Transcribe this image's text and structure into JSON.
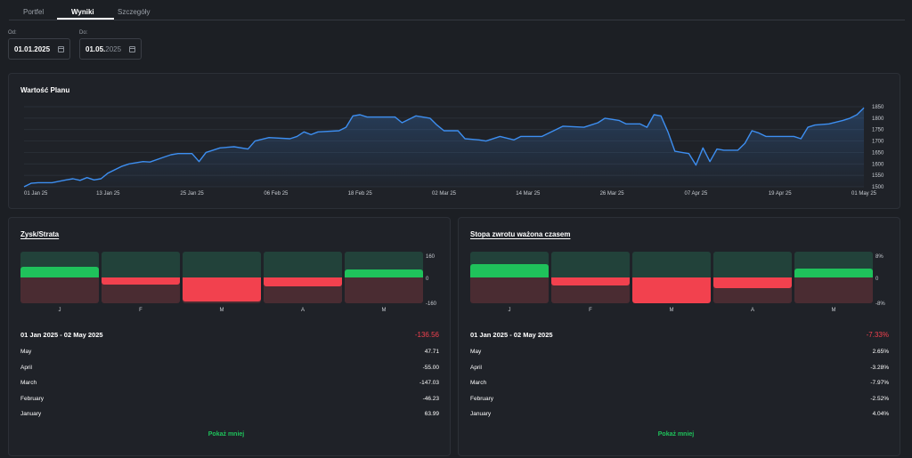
{
  "tabs": [
    {
      "label": "Portfel"
    },
    {
      "label": "Wyniki"
    },
    {
      "label": "Szczegóły"
    }
  ],
  "filters": {
    "from": {
      "label": "Od:",
      "value": "01.01.2025"
    },
    "to": {
      "label": "Do:",
      "value_main": "01.05.",
      "value_dim": "2025"
    }
  },
  "plan_chart": {
    "title": "Wartość Planu",
    "chart_data": {
      "type": "line",
      "title": "Wartość Planu",
      "x_tick_labels": [
        "01 Jan 25",
        "13 Jan 25",
        "25 Jan 25",
        "06 Feb 25",
        "18 Feb 25",
        "02 Mar 25",
        "14 Mar 25",
        "26 Mar 25",
        "07 Apr 25",
        "19 Apr 25",
        "01 May 25"
      ],
      "y_tick_labels": [
        "1850",
        "1800",
        "1750",
        "1700",
        "1650",
        "1600",
        "1550",
        "1500"
      ],
      "ylim": [
        1500,
        1850
      ],
      "grid": true,
      "series": [
        {
          "values": [
            {
              "x": "2025-01-01",
              "y": 1500
            },
            {
              "x": "2025-01-02",
              "y": 1515
            },
            {
              "x": "2025-01-03",
              "y": 1518
            },
            {
              "x": "2025-01-05",
              "y": 1518
            },
            {
              "x": "2025-01-07",
              "y": 1530
            },
            {
              "x": "2025-01-08",
              "y": 1535
            },
            {
              "x": "2025-01-09",
              "y": 1528
            },
            {
              "x": "2025-01-10",
              "y": 1540
            },
            {
              "x": "2025-01-11",
              "y": 1530
            },
            {
              "x": "2025-01-12",
              "y": 1535
            },
            {
              "x": "2025-01-13",
              "y": 1560
            },
            {
              "x": "2025-01-15",
              "y": 1590
            },
            {
              "x": "2025-01-16",
              "y": 1600
            },
            {
              "x": "2025-01-18",
              "y": 1610
            },
            {
              "x": "2025-01-19",
              "y": 1608
            },
            {
              "x": "2025-01-21",
              "y": 1630
            },
            {
              "x": "2025-01-22",
              "y": 1640
            },
            {
              "x": "2025-01-23",
              "y": 1645
            },
            {
              "x": "2025-01-25",
              "y": 1645
            },
            {
              "x": "2025-01-26",
              "y": 1610
            },
            {
              "x": "2025-01-27",
              "y": 1650
            },
            {
              "x": "2025-01-29",
              "y": 1670
            },
            {
              "x": "2025-01-31",
              "y": 1675
            },
            {
              "x": "2025-02-02",
              "y": 1665
            },
            {
              "x": "2025-02-03",
              "y": 1700
            },
            {
              "x": "2025-02-05",
              "y": 1715
            },
            {
              "x": "2025-02-08",
              "y": 1710
            },
            {
              "x": "2025-02-09",
              "y": 1720
            },
            {
              "x": "2025-02-10",
              "y": 1740
            },
            {
              "x": "2025-02-11",
              "y": 1728
            },
            {
              "x": "2025-02-12",
              "y": 1740
            },
            {
              "x": "2025-02-15",
              "y": 1745
            },
            {
              "x": "2025-02-16",
              "y": 1760
            },
            {
              "x": "2025-02-17",
              "y": 1810
            },
            {
              "x": "2025-02-18",
              "y": 1815
            },
            {
              "x": "2025-02-19",
              "y": 1805
            },
            {
              "x": "2025-02-23",
              "y": 1805
            },
            {
              "x": "2025-02-24",
              "y": 1780
            },
            {
              "x": "2025-02-26",
              "y": 1810
            },
            {
              "x": "2025-02-28",
              "y": 1800
            },
            {
              "x": "2025-03-01",
              "y": 1770
            },
            {
              "x": "2025-03-02",
              "y": 1745
            },
            {
              "x": "2025-03-04",
              "y": 1745
            },
            {
              "x": "2025-03-05",
              "y": 1710
            },
            {
              "x": "2025-03-07",
              "y": 1705
            },
            {
              "x": "2025-03-08",
              "y": 1700
            },
            {
              "x": "2025-03-10",
              "y": 1720
            },
            {
              "x": "2025-03-12",
              "y": 1705
            },
            {
              "x": "2025-03-13",
              "y": 1720
            },
            {
              "x": "2025-03-16",
              "y": 1720
            },
            {
              "x": "2025-03-18",
              "y": 1750
            },
            {
              "x": "2025-03-19",
              "y": 1765
            },
            {
              "x": "2025-03-22",
              "y": 1760
            },
            {
              "x": "2025-03-23",
              "y": 1770
            },
            {
              "x": "2025-03-24",
              "y": 1780
            },
            {
              "x": "2025-03-25",
              "y": 1800
            },
            {
              "x": "2025-03-27",
              "y": 1790
            },
            {
              "x": "2025-03-28",
              "y": 1775
            },
            {
              "x": "2025-03-30",
              "y": 1775
            },
            {
              "x": "2025-03-31",
              "y": 1760
            },
            {
              "x": "2025-04-01",
              "y": 1815
            },
            {
              "x": "2025-04-02",
              "y": 1810
            },
            {
              "x": "2025-04-03",
              "y": 1740
            },
            {
              "x": "2025-04-04",
              "y": 1655
            },
            {
              "x": "2025-04-05",
              "y": 1650
            },
            {
              "x": "2025-04-06",
              "y": 1645
            },
            {
              "x": "2025-04-07",
              "y": 1595
            },
            {
              "x": "2025-04-08",
              "y": 1670
            },
            {
              "x": "2025-04-09",
              "y": 1610
            },
            {
              "x": "2025-04-10",
              "y": 1665
            },
            {
              "x": "2025-04-11",
              "y": 1660
            },
            {
              "x": "2025-04-13",
              "y": 1660
            },
            {
              "x": "2025-04-14",
              "y": 1690
            },
            {
              "x": "2025-04-15",
              "y": 1745
            },
            {
              "x": "2025-04-16",
              "y": 1735
            },
            {
              "x": "2025-04-17",
              "y": 1720
            },
            {
              "x": "2025-04-19",
              "y": 1720
            },
            {
              "x": "2025-04-21",
              "y": 1720
            },
            {
              "x": "2025-04-22",
              "y": 1710
            },
            {
              "x": "2025-04-23",
              "y": 1760
            },
            {
              "x": "2025-04-24",
              "y": 1770
            },
            {
              "x": "2025-04-26",
              "y": 1775
            },
            {
              "x": "2025-04-28",
              "y": 1790
            },
            {
              "x": "2025-04-29",
              "y": 1800
            },
            {
              "x": "2025-04-30",
              "y": 1815
            },
            {
              "x": "2025-05-01",
              "y": 1845
            }
          ]
        }
      ]
    }
  },
  "profit_panel": {
    "title": "Zysk/Strata",
    "chart_data": {
      "type": "bar",
      "categories": [
        "J",
        "F",
        "M",
        "A",
        "M"
      ],
      "values": [
        63.99,
        -46.23,
        -147.03,
        -55.0,
        47.71
      ],
      "ylim": [
        -160,
        160
      ],
      "y_tick_labels": [
        "160",
        "0",
        "-160"
      ]
    },
    "period": "01 Jan 2025 - 02 May 2025",
    "total": "-136.56",
    "rows": [
      {
        "label": "May",
        "value": "47.71"
      },
      {
        "label": "April",
        "value": "-55.00"
      },
      {
        "label": "March",
        "value": "-147.03"
      },
      {
        "label": "February",
        "value": "-46.23"
      },
      {
        "label": "January",
        "value": "63.99"
      }
    ],
    "toggle": "Pokaż mniej"
  },
  "twr_panel": {
    "title": "Stopa zwrotu ważona czasem",
    "chart_data": {
      "type": "bar",
      "categories": [
        "J",
        "F",
        "M",
        "A",
        "M"
      ],
      "values": [
        4.04,
        -2.52,
        -7.97,
        -3.28,
        2.65
      ],
      "ylim": [
        -8,
        8
      ],
      "y_tick_labels": [
        "8%",
        "0",
        "-8%"
      ]
    },
    "period": "01 Jan 2025 - 02 May 2025",
    "total": "-7.33%",
    "rows": [
      {
        "label": "May",
        "value": "2.65%"
      },
      {
        "label": "April",
        "value": "-3.28%"
      },
      {
        "label": "March",
        "value": "-7.97%"
      },
      {
        "label": "February",
        "value": "-2.52%"
      },
      {
        "label": "January",
        "value": "4.04%"
      }
    ],
    "toggle": "Pokaż mniej"
  },
  "colors": {
    "positive": "#1fc25b",
    "negative": "#f2414e",
    "line": "#3d8ef0"
  }
}
